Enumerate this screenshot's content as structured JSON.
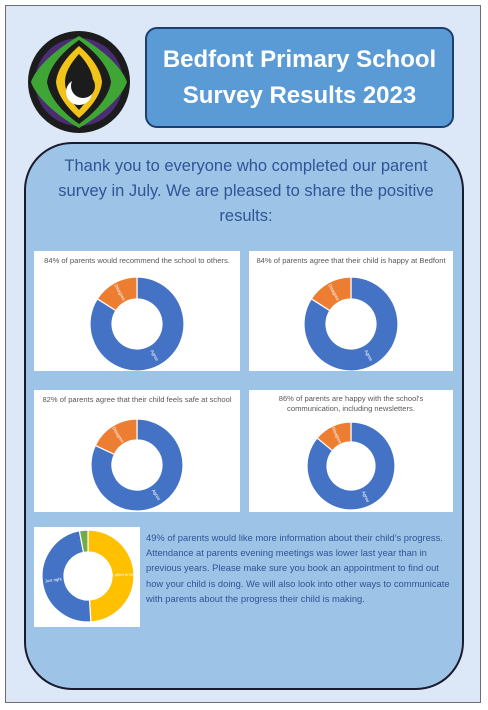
{
  "header": {
    "title_line1": "Bedfont Primary School",
    "title_line2": "Survey Results 2023"
  },
  "intro": "Thank you to everyone who completed our parent survey in July. We are pleased to share the positive results:",
  "colors": {
    "agree": "#4472c4",
    "disagree": "#ed7d31",
    "not_often_enough": "#ffc000",
    "no_answer": "#70ad47"
  },
  "chart_data": [
    {
      "type": "pie",
      "title": "84% of parents would recommend the school to others.",
      "series": [
        {
          "label": "Agree",
          "value": 84
        },
        {
          "label": "Disagree",
          "value": 16
        }
      ]
    },
    {
      "type": "pie",
      "title": "84% of parents agree that their child is happy at Bedfont",
      "series": [
        {
          "label": "Agree",
          "value": 84
        },
        {
          "label": "Disagree",
          "value": 16
        }
      ]
    },
    {
      "type": "pie",
      "title": "82% of parents agree that their child feels safe at school",
      "series": [
        {
          "label": "Agree",
          "value": 82
        },
        {
          "label": "Disagree",
          "value": 18
        }
      ]
    },
    {
      "type": "pie",
      "title_lines": [
        "86% of parents are happy with the school's",
        "communication, including newsletters."
      ],
      "series": [
        {
          "label": "Agree",
          "value": 86
        },
        {
          "label": "Disagree",
          "value": 14
        }
      ]
    },
    {
      "type": "pie",
      "title": "",
      "series": [
        {
          "label": "Not often enough",
          "value": 49
        },
        {
          "label": "Just right",
          "value": 48
        },
        {
          "label": "",
          "value": 3
        }
      ]
    }
  ],
  "bottom_text": "49% of parents would like more information about their child’s progress. Attendance at parents evening meetings was lower last year than in previous years. Please make sure you book an appointment to find out how your child is doing. We will also look into other ways to communicate with parents about the progress their child is making."
}
